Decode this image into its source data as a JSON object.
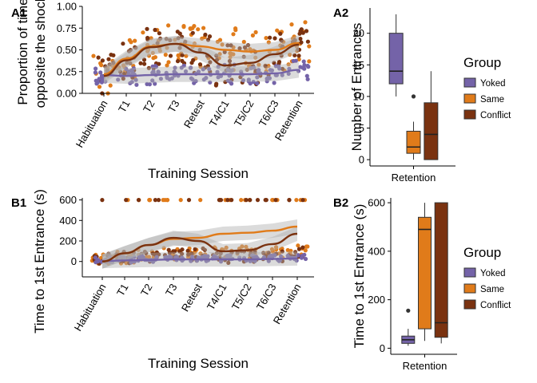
{
  "colors": {
    "Yoked": "#7463a8",
    "Same": "#e07b1a",
    "Conflict": "#7a3210",
    "band": "#b0b0b0"
  },
  "chart_data": [
    {
      "id": "A1",
      "type": "scatter",
      "panel_label": "A1",
      "xlabel": "Training Session",
      "ylabel": "Proportion of time\nopposite the shock",
      "categories": [
        "Habituation",
        "T1",
        "T2",
        "T3",
        "Retest",
        "T4/C1",
        "T5/C2",
        "T6/C3",
        "Retention"
      ],
      "ylim": [
        0,
        1
      ],
      "yticks": [
        0.0,
        0.25,
        0.5,
        0.75,
        1.0
      ],
      "ytick_labels": [
        "0.00",
        "0.25",
        "0.50",
        "0.75",
        "1.00"
      ],
      "series": [
        {
          "name": "Yoked",
          "smooth": [
            0.21,
            0.2,
            0.21,
            0.22,
            0.22,
            0.22,
            0.22,
            0.23,
            0.27
          ]
        },
        {
          "name": "Same",
          "smooth": [
            0.22,
            0.4,
            0.54,
            0.57,
            0.54,
            0.5,
            0.48,
            0.5,
            0.58
          ]
        },
        {
          "name": "Conflict",
          "smooth": [
            0.2,
            0.38,
            0.53,
            0.57,
            0.47,
            0.32,
            0.35,
            0.45,
            0.56
          ]
        }
      ]
    },
    {
      "id": "A2",
      "type": "box",
      "panel_label": "A2",
      "xlabel": "",
      "ylabel": "Number of Entrances",
      "categories": [
        "Retention"
      ],
      "ylim": [
        -1,
        24
      ],
      "yticks": [
        0,
        5,
        10,
        15,
        20
      ],
      "ytick_labels": [
        "0",
        "5",
        "10",
        "15",
        "20"
      ],
      "boxes": [
        {
          "name": "Yoked",
          "min": 10,
          "q1": 12,
          "median": 14,
          "q3": 20,
          "max": 23,
          "outliers": []
        },
        {
          "name": "Same",
          "min": 0,
          "q1": 1,
          "median": 2,
          "q3": 4.5,
          "max": 6,
          "outliers": [
            10
          ]
        },
        {
          "name": "Conflict",
          "min": 0,
          "q1": 0,
          "median": 4,
          "q3": 9,
          "max": 14,
          "outliers": []
        }
      ],
      "legend": {
        "title": "Group",
        "entries": [
          "Yoked",
          "Same",
          "Conflict"
        ]
      }
    },
    {
      "id": "B1",
      "type": "scatter",
      "panel_label": "B1",
      "xlabel": "Training Session",
      "ylabel": "Time to 1st Entrance (s)",
      "categories": [
        "Habituation",
        "T1",
        "T2",
        "T3",
        "Retest",
        "T4/C1",
        "T5/C2",
        "T6/C3",
        "Retention"
      ],
      "ylim": [
        -150,
        620
      ],
      "yticks": [
        0,
        200,
        400,
        600
      ],
      "ytick_labels": [
        "0",
        "200",
        "400",
        "600"
      ],
      "series": [
        {
          "name": "Yoked",
          "smooth": [
            5,
            10,
            15,
            20,
            20,
            20,
            20,
            25,
            30
          ]
        },
        {
          "name": "Same",
          "smooth": [
            0,
            80,
            160,
            220,
            230,
            270,
            280,
            300,
            340
          ]
        },
        {
          "name": "Conflict",
          "smooth": [
            0,
            80,
            160,
            230,
            200,
            100,
            110,
            170,
            270
          ]
        }
      ]
    },
    {
      "id": "B2",
      "type": "box",
      "panel_label": "B2",
      "xlabel": "Retention",
      "ylabel": "Time to 1st Entrance (s)",
      "categories": [
        "Retention"
      ],
      "ylim": [
        -25,
        620
      ],
      "yticks": [
        0,
        200,
        400,
        600
      ],
      "ytick_labels": [
        "0",
        "200",
        "400",
        "600"
      ],
      "boxes": [
        {
          "name": "Yoked",
          "min": 10,
          "q1": 20,
          "median": 35,
          "q3": 50,
          "max": 80,
          "outliers": [
            155
          ]
        },
        {
          "name": "Same",
          "min": 30,
          "q1": 80,
          "median": 490,
          "q3": 540,
          "max": 600,
          "outliers": []
        },
        {
          "name": "Conflict",
          "min": 20,
          "q1": 45,
          "median": 105,
          "q3": 600,
          "max": 600,
          "outliers": []
        }
      ],
      "legend": {
        "title": "Group",
        "entries": [
          "Yoked",
          "Same",
          "Conflict"
        ]
      }
    }
  ]
}
